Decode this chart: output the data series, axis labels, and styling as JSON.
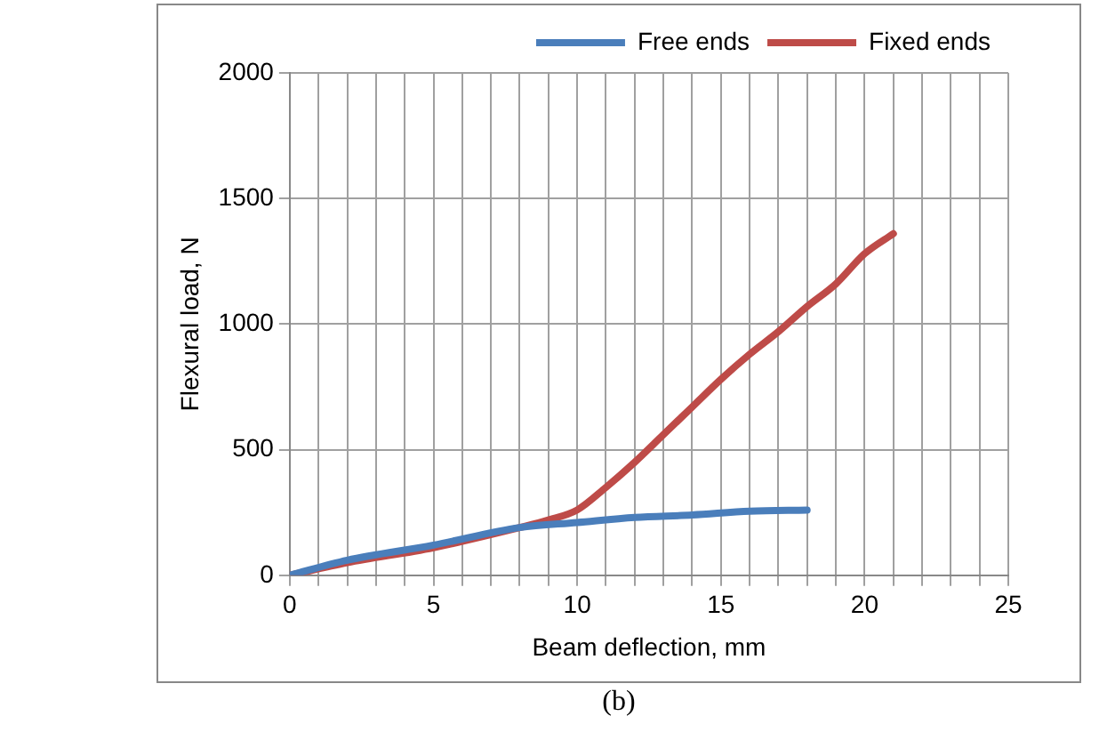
{
  "chart_data": {
    "type": "line",
    "xlabel": "Beam deflection, mm",
    "ylabel": "Flexural load, N",
    "annotations": [
      "(b)"
    ],
    "xlim": [
      0,
      25
    ],
    "ylim": [
      0,
      2000
    ],
    "xticks": [
      0,
      {
        "value": 1,
        "label": null
      },
      {
        "value": 2,
        "label": null
      },
      {
        "value": 3,
        "label": null
      },
      {
        "value": 4,
        "label": null
      },
      5,
      {
        "value": 6,
        "label": null
      },
      {
        "value": 7,
        "label": null
      },
      {
        "value": 8,
        "label": null
      },
      {
        "value": 9,
        "label": null
      },
      10,
      {
        "value": 11,
        "label": null
      },
      {
        "value": 12,
        "label": null
      },
      {
        "value": 13,
        "label": null
      },
      {
        "value": 14,
        "label": null
      },
      15,
      {
        "value": 16,
        "label": null
      },
      {
        "value": 17,
        "label": null
      },
      {
        "value": 18,
        "label": null
      },
      {
        "value": 19,
        "label": null
      },
      20,
      {
        "value": 21,
        "label": null
      },
      {
        "value": 22,
        "label": null
      },
      {
        "value": 23,
        "label": null
      },
      {
        "value": 24,
        "label": null
      },
      25
    ],
    "yticks": [
      0,
      500,
      1000,
      1500,
      2000
    ],
    "grid": true,
    "legend": "top right",
    "marker": "none",
    "line_style": "solid",
    "series": [
      {
        "name": "Free ends",
        "color": "#4a7ebb",
        "x": [
          0,
          2,
          5,
          8,
          10,
          12,
          14,
          16,
          18
        ],
        "values": [
          0,
          60,
          120,
          190,
          210,
          230,
          240,
          255,
          260
        ]
      },
      {
        "name": "Fixed ends",
        "color": "#be4b48",
        "x": [
          0,
          2,
          5,
          8,
          9,
          10,
          11,
          12,
          13,
          14,
          15,
          16,
          17,
          18,
          19,
          20,
          21
        ],
        "values": [
          0,
          50,
          110,
          190,
          220,
          260,
          350,
          450,
          560,
          670,
          780,
          880,
          970,
          1070,
          1160,
          1280,
          1360
        ]
      }
    ]
  }
}
